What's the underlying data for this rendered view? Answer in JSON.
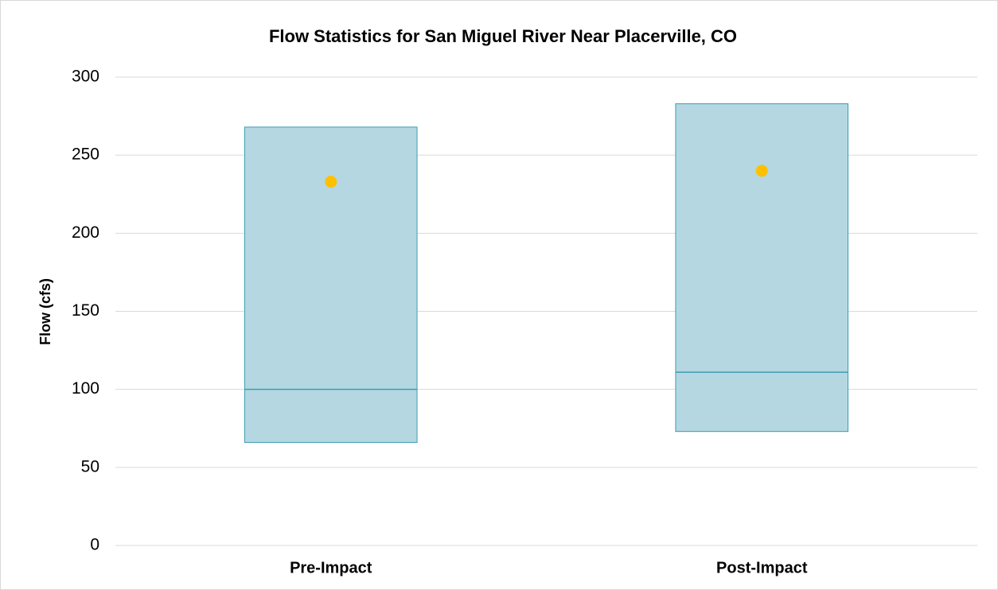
{
  "chart_data": {
    "type": "box",
    "title": "Flow Statistics for San Miguel River Near Placerville, CO",
    "y_label": "Flow (cfs)",
    "categories": [
      "Pre-Impact",
      "Post-Impact"
    ],
    "boxes": [
      {
        "q1": 66,
        "median": 100,
        "q3": 268,
        "mean": 233
      },
      {
        "q1": 73,
        "median": 111,
        "q3": 283,
        "mean": 240
      }
    ],
    "box_color": "#b4d7e2",
    "edge_color": "#3d9db3",
    "mean_color": "#ffc000",
    "ylim": [
      0,
      300
    ],
    "yticks": [
      0,
      50,
      100,
      150,
      200,
      250,
      300
    ],
    "grid": true
  }
}
